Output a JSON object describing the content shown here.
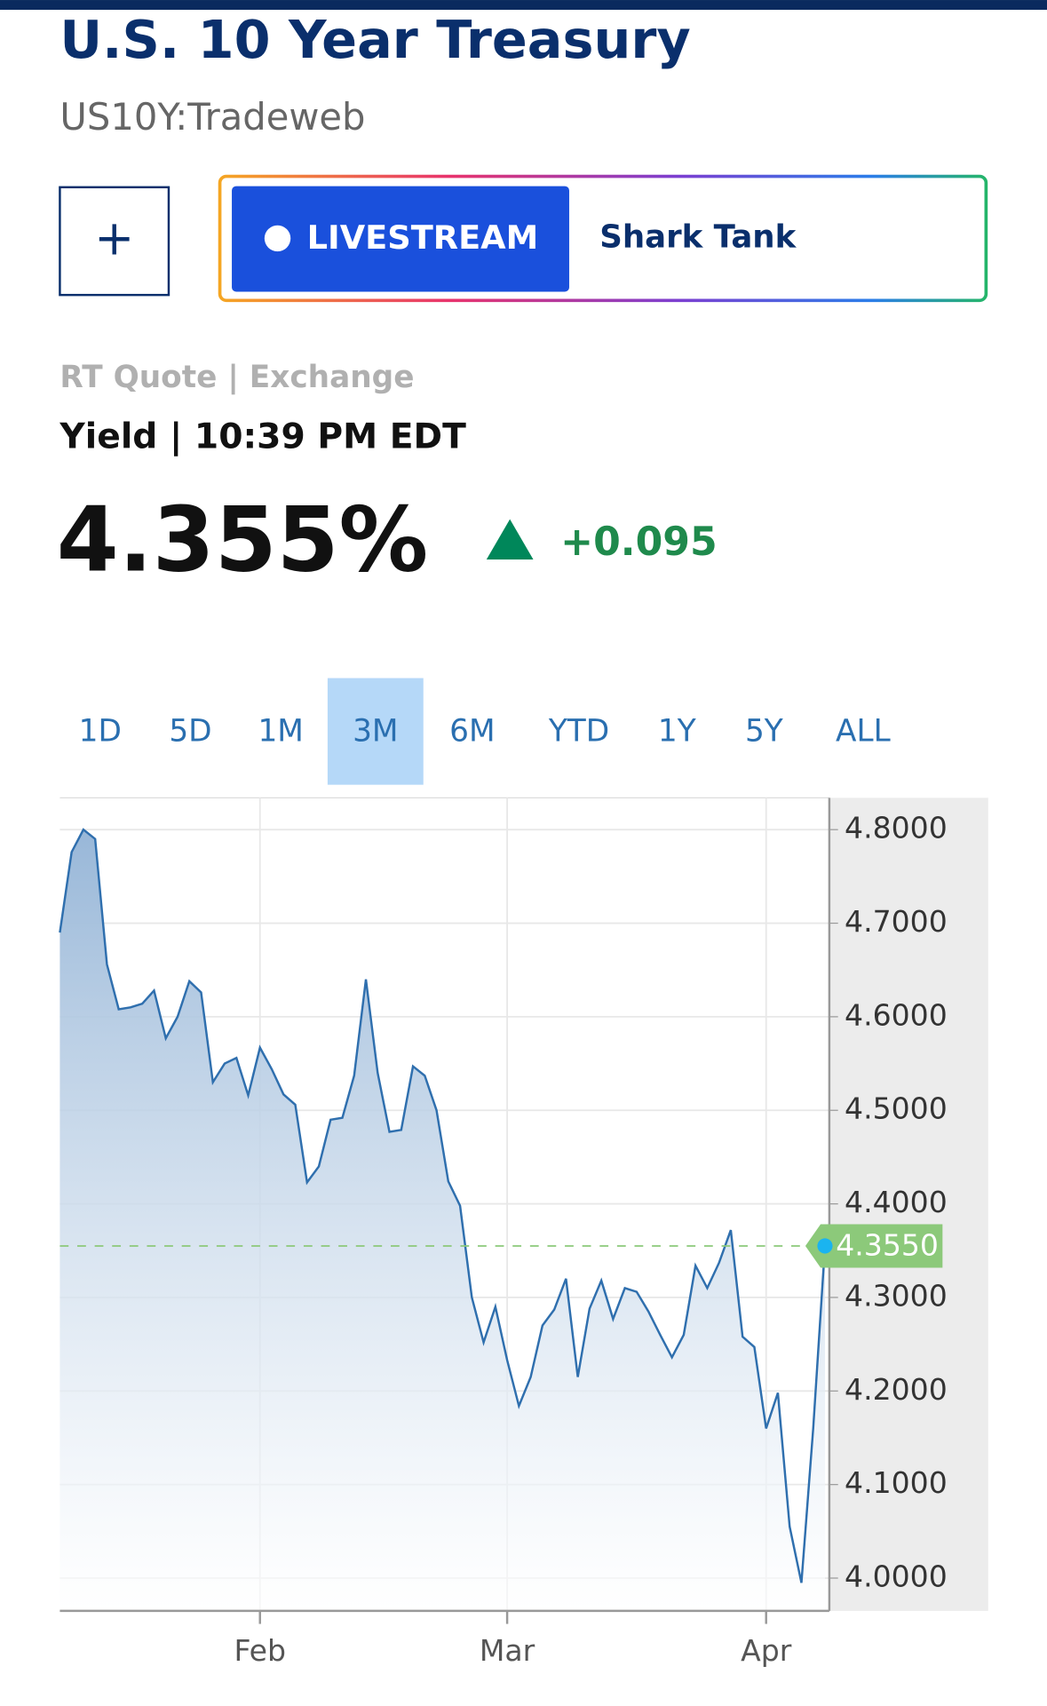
{
  "header": {
    "title": "U.S. 10 Year Treasury",
    "subtitle": "US10Y:Tradeweb"
  },
  "buttons": {
    "add": "+",
    "live": "LIVESTREAM",
    "show": "Shark Tank"
  },
  "quote": {
    "source": "RT Quote | Exchange",
    "label": "Yield | 10:39 PM EDT",
    "price": "4.355%",
    "change": "+0.095"
  },
  "tabs": {
    "items": [
      "1D",
      "5D",
      "1M",
      "3M",
      "6M",
      "YTD",
      "1Y",
      "5Y",
      "ALL"
    ],
    "active": 3
  },
  "chart_data": {
    "type": "area",
    "color": "#2f6fae",
    "categories": [
      null,
      null,
      null,
      null,
      null,
      null,
      null,
      null,
      null,
      null,
      null,
      null,
      null,
      null,
      null,
      null,
      null,
      "Feb",
      null,
      null,
      null,
      null,
      null,
      null,
      null,
      null,
      null,
      null,
      null,
      null,
      null,
      null,
      null,
      null,
      null,
      null,
      null,
      null,
      "Mar",
      null,
      null,
      null,
      null,
      null,
      null,
      null,
      null,
      null,
      null,
      null,
      null,
      null,
      null,
      null,
      null,
      null,
      null,
      null,
      null,
      null,
      "Apr",
      null,
      null,
      null,
      null,
      null
    ],
    "values": [
      4.69,
      4.776,
      4.8,
      4.79,
      4.656,
      4.608,
      4.61,
      4.614,
      4.628,
      4.577,
      4.6,
      4.638,
      4.626,
      4.53,
      4.55,
      4.556,
      4.516,
      4.567,
      4.544,
      4.517,
      4.506,
      4.423,
      4.44,
      4.49,
      4.492,
      4.537,
      4.64,
      4.54,
      4.477,
      4.479,
      4.547,
      4.537,
      4.5,
      4.424,
      4.398,
      4.3,
      4.252,
      4.29,
      4.233,
      4.184,
      4.215,
      4.27,
      4.287,
      4.32,
      4.215,
      4.288,
      4.318,
      4.277,
      4.31,
      4.306,
      4.285,
      4.26,
      4.236,
      4.26,
      4.334,
      4.31,
      4.337,
      4.372,
      4.258,
      4.247,
      4.16,
      4.198,
      4.055,
      3.995,
      4.16,
      4.355
    ],
    "ylim": [
      3.965,
      4.834
    ],
    "yticks": [
      {
        "value": 4.0,
        "label": "4.0000"
      },
      {
        "value": 4.1,
        "label": "4.1000"
      },
      {
        "value": 4.2,
        "label": "4.2000"
      },
      {
        "value": 4.3,
        "label": "4.3000"
      },
      {
        "value": 4.4,
        "label": "4.4000"
      },
      {
        "value": 4.5,
        "label": "4.5000"
      },
      {
        "value": 4.6,
        "label": "4.6000"
      },
      {
        "value": 4.7,
        "label": "4.7000"
      },
      {
        "value": 4.8,
        "label": "4.8000"
      }
    ],
    "current_value": {
      "value": 4.355,
      "label": "4.3550"
    },
    "grid": true
  }
}
